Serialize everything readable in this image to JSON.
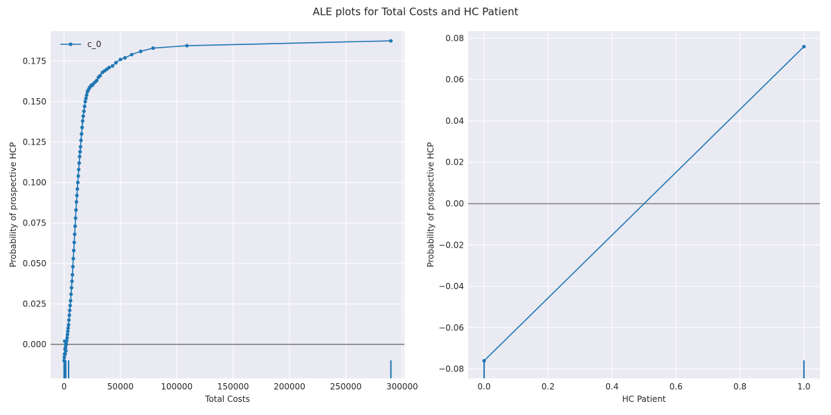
{
  "figure": {
    "title": "ALE plots for Total Costs and HC Patient"
  },
  "colors": {
    "series": "#1f77b4",
    "plot_bg": "#eaeaf2",
    "grid": "#ffffff",
    "zero_line": "#808080",
    "text": "#262626"
  },
  "chart_data": [
    {
      "type": "line",
      "xlabel": "Total Costs",
      "ylabel": "Probability of prospective HCP",
      "xlim": [
        -12000,
        302000
      ],
      "ylim": [
        -0.021,
        0.1935
      ],
      "xticks": [
        0,
        50000,
        100000,
        150000,
        200000,
        250000,
        300000
      ],
      "xtick_labels": [
        "0",
        "50000",
        "100000",
        "150000",
        "200000",
        "250000",
        "300000"
      ],
      "yticks": [
        0.0,
        0.025,
        0.05,
        0.075,
        0.1,
        0.125,
        0.15,
        0.175
      ],
      "ytick_labels": [
        "0.000",
        "0.025",
        "0.050",
        "0.075",
        "0.100",
        "0.125",
        "0.150",
        "0.175"
      ],
      "legend": {
        "position": "top-left",
        "entries": [
          "c_0"
        ]
      },
      "zero_line": 0,
      "rug": [
        0,
        200,
        500,
        1000,
        1500,
        4000,
        290000
      ],
      "series": [
        {
          "name": "c_0",
          "x": [
            0,
            200,
            400,
            600,
            800,
            1000,
            1300,
            1600,
            2000,
            2300,
            2700,
            3000,
            3300,
            3600,
            4000,
            4300,
            4700,
            5000,
            5400,
            5800,
            6200,
            6600,
            7000,
            7400,
            7800,
            8200,
            8600,
            9000,
            9400,
            9800,
            10200,
            10600,
            11000,
            11400,
            11800,
            12200,
            12600,
            13000,
            13400,
            13800,
            14200,
            14600,
            15000,
            15500,
            16000,
            16500,
            17000,
            17600,
            18200,
            18800,
            19400,
            20000,
            20700,
            21400,
            22200,
            23000,
            24000,
            25000,
            26000,
            27500,
            29000,
            30500,
            32000,
            34000,
            36000,
            38000,
            40000,
            43000,
            46000,
            50000,
            54000,
            60000,
            68000,
            79000,
            109000,
            290000
          ],
          "y": [
            -0.01,
            -0.008,
            -0.006,
            0.002,
            -0.003,
            -0.006,
            -0.002,
            -0.004,
            0.0,
            0.002,
            0.004,
            0.006,
            0.008,
            0.01,
            0.012,
            0.015,
            0.018,
            0.021,
            0.024,
            0.027,
            0.031,
            0.035,
            0.039,
            0.043,
            0.048,
            0.053,
            0.058,
            0.063,
            0.068,
            0.073,
            0.078,
            0.083,
            0.088,
            0.092,
            0.096,
            0.1,
            0.104,
            0.108,
            0.112,
            0.116,
            0.119,
            0.122,
            0.126,
            0.13,
            0.134,
            0.138,
            0.141,
            0.144,
            0.147,
            0.15,
            0.152,
            0.154,
            0.156,
            0.157,
            0.158,
            0.159,
            0.16,
            0.16,
            0.161,
            0.162,
            0.163,
            0.165,
            0.166,
            0.168,
            0.169,
            0.17,
            0.171,
            0.172,
            0.174,
            0.176,
            0.177,
            0.179,
            0.181,
            0.183,
            0.1845,
            0.1875
          ]
        }
      ]
    },
    {
      "type": "line",
      "xlabel": "HC Patient",
      "ylabel": "Probability of prospective HCP",
      "xlim": [
        -0.05,
        1.05
      ],
      "ylim": [
        -0.0845,
        0.0835
      ],
      "xticks": [
        0.0,
        0.2,
        0.4,
        0.6,
        0.8,
        1.0
      ],
      "xtick_labels": [
        "0.0",
        "0.2",
        "0.4",
        "0.6",
        "0.8",
        "1.0"
      ],
      "yticks": [
        -0.08,
        -0.06,
        -0.04,
        -0.02,
        0.0,
        0.02,
        0.04,
        0.06,
        0.08
      ],
      "ytick_labels": [
        "−0.08",
        "−0.06",
        "−0.04",
        "−0.02",
        "0.00",
        "0.02",
        "0.04",
        "0.06",
        "0.08"
      ],
      "zero_line": 0,
      "rug": [
        0.0,
        1.0
      ],
      "series": [
        {
          "x": [
            0.0,
            1.0
          ],
          "y": [
            -0.076,
            0.076
          ]
        }
      ]
    }
  ]
}
